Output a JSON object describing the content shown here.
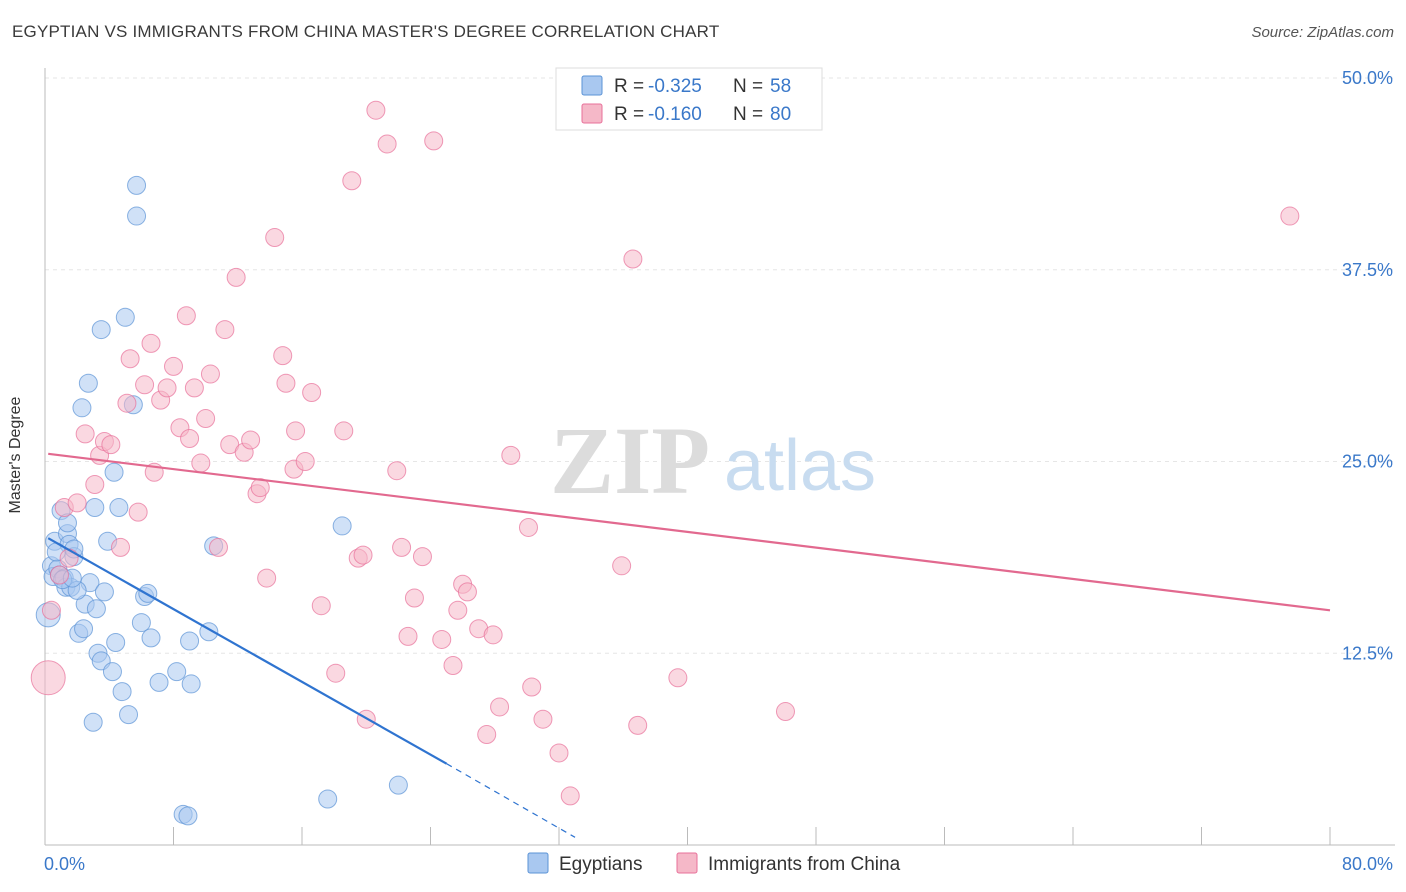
{
  "header": {
    "title": "EGYPTIAN VS IMMIGRANTS FROM CHINA MASTER'S DEGREE CORRELATION CHART",
    "source": "Source: ZipAtlas.com"
  },
  "watermark": {
    "zip": "ZIP",
    "atlas": "atlas"
  },
  "legend_box": {
    "rows": [
      {
        "r_label": "R = ",
        "r_value": "-0.325",
        "n_label": "N = ",
        "n_value": "58",
        "color": "#a9c8f0"
      },
      {
        "r_label": "R = ",
        "r_value": "-0.160",
        "n_label": "N = ",
        "n_value": "80",
        "color": "#f5b8c8"
      }
    ]
  },
  "chart_data": {
    "type": "scatter",
    "title": "EGYPTIAN VS IMMIGRANTS FROM CHINA MASTER'S DEGREE CORRELATION CHART",
    "xlabel": "",
    "ylabel": "Master's Degree",
    "xlim": [
      0,
      80
    ],
    "ylim": [
      0,
      50
    ],
    "x_tick_labels": [
      "0.0%",
      "80.0%"
    ],
    "y_tick_labels": [
      "12.5%",
      "25.0%",
      "37.5%",
      "50.0%"
    ],
    "y_ticks": [
      12.5,
      25.0,
      37.5,
      50.0
    ],
    "grid": true,
    "legend_position": "bottom",
    "series": [
      {
        "name": "Egyptians",
        "color": "#5b93d6",
        "fill": "#a9c8f0",
        "trend": {
          "x0": 0.2,
          "y0": 20.0,
          "x1": 25.0,
          "y1": 5.3,
          "dash_to_x": 33.0,
          "dash_to_y": 0.5
        },
        "points": [
          [
            0.2,
            15.0
          ],
          [
            0.4,
            18.2
          ],
          [
            0.5,
            17.5
          ],
          [
            0.6,
            19.8
          ],
          [
            0.8,
            18.0
          ],
          [
            0.9,
            17.6
          ],
          [
            1.0,
            21.8
          ],
          [
            1.2,
            17.4
          ],
          [
            1.3,
            16.8
          ],
          [
            1.4,
            20.3
          ],
          [
            1.4,
            21.0
          ],
          [
            1.5,
            19.6
          ],
          [
            1.6,
            16.8
          ],
          [
            1.8,
            18.8
          ],
          [
            1.8,
            19.3
          ],
          [
            2.1,
            13.8
          ],
          [
            2.3,
            28.5
          ],
          [
            2.4,
            14.1
          ],
          [
            2.5,
            15.7
          ],
          [
            2.7,
            30.1
          ],
          [
            2.8,
            17.1
          ],
          [
            3.0,
            8.0
          ],
          [
            3.1,
            22.0
          ],
          [
            3.2,
            15.4
          ],
          [
            3.3,
            12.5
          ],
          [
            3.5,
            12.0
          ],
          [
            3.5,
            33.6
          ],
          [
            3.7,
            16.5
          ],
          [
            3.9,
            19.8
          ],
          [
            4.2,
            11.3
          ],
          [
            4.3,
            24.3
          ],
          [
            4.4,
            13.2
          ],
          [
            4.6,
            22.0
          ],
          [
            4.8,
            10.0
          ],
          [
            5.0,
            34.4
          ],
          [
            5.2,
            8.5
          ],
          [
            5.5,
            28.7
          ],
          [
            5.7,
            43.0
          ],
          [
            5.7,
            41.0
          ],
          [
            6.0,
            14.5
          ],
          [
            6.2,
            16.2
          ],
          [
            6.4,
            16.4
          ],
          [
            6.6,
            13.5
          ],
          [
            7.1,
            10.6
          ],
          [
            8.2,
            11.3
          ],
          [
            8.6,
            2.0
          ],
          [
            8.9,
            1.9
          ],
          [
            9.0,
            13.3
          ],
          [
            9.1,
            10.5
          ],
          [
            10.2,
            13.9
          ],
          [
            10.5,
            19.5
          ],
          [
            17.6,
            3.0
          ],
          [
            18.5,
            20.8
          ],
          [
            22.0,
            3.9
          ],
          [
            0.7,
            19.1
          ],
          [
            1.1,
            17.3
          ],
          [
            2.0,
            16.6
          ],
          [
            1.7,
            17.4
          ]
        ]
      },
      {
        "name": "Immigrants from China",
        "color": "#e8709a",
        "fill": "#f5b8c8",
        "trend": {
          "x0": 0.2,
          "y0": 25.5,
          "x1": 80.0,
          "y1": 15.3
        },
        "points": [
          [
            0.2,
            10.9
          ],
          [
            0.4,
            15.3
          ],
          [
            0.9,
            17.6
          ],
          [
            1.2,
            22.0
          ],
          [
            1.5,
            18.7
          ],
          [
            2.0,
            22.3
          ],
          [
            2.5,
            26.8
          ],
          [
            3.1,
            23.5
          ],
          [
            3.4,
            25.4
          ],
          [
            3.7,
            26.3
          ],
          [
            4.1,
            26.1
          ],
          [
            4.7,
            19.4
          ],
          [
            5.1,
            28.8
          ],
          [
            5.3,
            31.7
          ],
          [
            5.8,
            21.7
          ],
          [
            6.2,
            30.0
          ],
          [
            6.6,
            32.7
          ],
          [
            6.8,
            24.3
          ],
          [
            7.2,
            29.0
          ],
          [
            7.6,
            29.8
          ],
          [
            8.0,
            31.2
          ],
          [
            8.4,
            27.2
          ],
          [
            8.8,
            34.5
          ],
          [
            9.0,
            26.5
          ],
          [
            9.3,
            29.8
          ],
          [
            9.7,
            24.9
          ],
          [
            10.0,
            27.8
          ],
          [
            10.3,
            30.7
          ],
          [
            10.8,
            19.4
          ],
          [
            11.2,
            33.6
          ],
          [
            11.5,
            26.1
          ],
          [
            11.9,
            37.0
          ],
          [
            12.4,
            25.6
          ],
          [
            12.8,
            26.4
          ],
          [
            13.2,
            22.9
          ],
          [
            13.4,
            23.3
          ],
          [
            13.8,
            17.4
          ],
          [
            14.3,
            39.6
          ],
          [
            14.8,
            31.9
          ],
          [
            15.0,
            30.1
          ],
          [
            15.5,
            24.5
          ],
          [
            15.6,
            27.0
          ],
          [
            16.2,
            25.0
          ],
          [
            16.6,
            29.5
          ],
          [
            17.2,
            15.6
          ],
          [
            18.1,
            11.2
          ],
          [
            18.6,
            27.0
          ],
          [
            19.1,
            43.3
          ],
          [
            19.5,
            18.7
          ],
          [
            19.8,
            18.9
          ],
          [
            20.0,
            8.2
          ],
          [
            20.6,
            47.9
          ],
          [
            21.3,
            45.7
          ],
          [
            21.9,
            24.4
          ],
          [
            22.2,
            19.4
          ],
          [
            22.6,
            13.6
          ],
          [
            23.0,
            16.1
          ],
          [
            23.5,
            18.8
          ],
          [
            24.2,
            45.9
          ],
          [
            24.7,
            13.4
          ],
          [
            25.4,
            11.7
          ],
          [
            25.7,
            15.3
          ],
          [
            26.0,
            17.0
          ],
          [
            26.3,
            16.5
          ],
          [
            27.0,
            14.1
          ],
          [
            27.5,
            7.2
          ],
          [
            27.9,
            13.7
          ],
          [
            28.3,
            9.0
          ],
          [
            29.0,
            25.4
          ],
          [
            30.1,
            20.7
          ],
          [
            30.3,
            10.3
          ],
          [
            31.0,
            8.2
          ],
          [
            32.0,
            6.0
          ],
          [
            32.7,
            3.2
          ],
          [
            35.9,
            18.2
          ],
          [
            36.6,
            38.2
          ],
          [
            36.9,
            7.8
          ],
          [
            39.4,
            10.9
          ],
          [
            46.1,
            8.7
          ],
          [
            77.5,
            41.0
          ]
        ]
      }
    ]
  },
  "legend": {
    "items": [
      {
        "label": "Egyptians",
        "color": "#a9c8f0",
        "stroke": "#5b93d6"
      },
      {
        "label": "Immigrants from China",
        "color": "#f5b8c8",
        "stroke": "#e8709a"
      }
    ]
  }
}
